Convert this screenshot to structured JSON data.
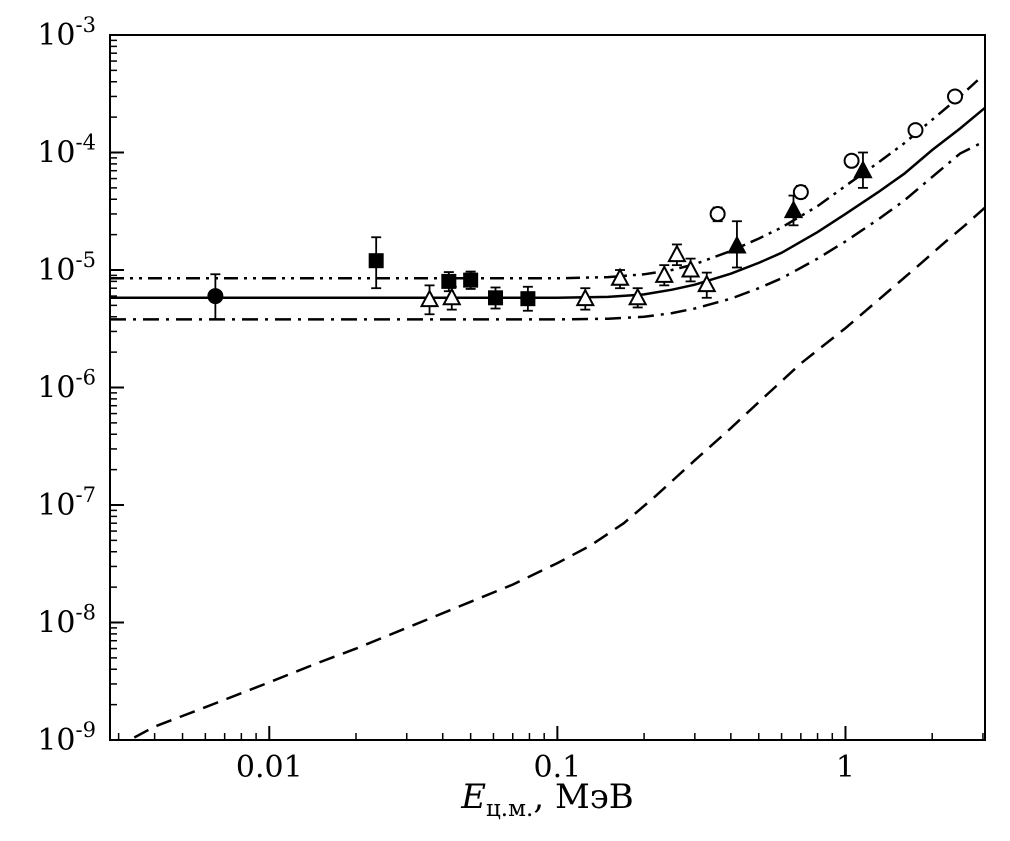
{
  "figure": {
    "background": "#ffffff",
    "ink_color": "#000000"
  },
  "chart_data": {
    "type": "scatter",
    "title": "",
    "xlabel": {
      "main": "E",
      "sub": "ц.м.",
      "rest": ", МэВ"
    },
    "ylabel": "",
    "x_axis": {
      "scale": "log",
      "min": 0.0028,
      "max": 3.05,
      "tick_values": [
        0.01,
        0.1,
        1
      ],
      "tick_labels": [
        "0.01",
        "0.1",
        "1"
      ]
    },
    "y_axis": {
      "scale": "log",
      "min": 1e-09,
      "max": 0.001,
      "tick_exponents": [
        -3,
        -4,
        -5,
        -6,
        -7,
        -8,
        -9
      ],
      "tick_base": "10"
    },
    "grid": false,
    "legend": "none",
    "series": [
      {
        "name": "filled-circle-data",
        "marker": "filled-circle",
        "points": [
          {
            "x": 0.0065,
            "y": 6e-06,
            "lo": 3.8e-06,
            "hi": 9.2e-06
          }
        ]
      },
      {
        "name": "filled-square-data",
        "marker": "filled-square",
        "points": [
          {
            "x": 0.0235,
            "y": 1.2e-05,
            "lo": 7e-06,
            "hi": 1.9e-05
          },
          {
            "x": 0.042,
            "y": 8e-06,
            "lo": 6.6e-06,
            "hi": 9.6e-06
          },
          {
            "x": 0.05,
            "y": 8.2e-06,
            "lo": 6.9e-06,
            "hi": 9.7e-06
          },
          {
            "x": 0.061,
            "y": 5.8e-06,
            "lo": 4.7e-06,
            "hi": 7.1e-06
          },
          {
            "x": 0.079,
            "y": 5.7e-06,
            "lo": 4.5e-06,
            "hi": 7.2e-06
          }
        ]
      },
      {
        "name": "open-triangle-data",
        "marker": "open-triangle",
        "points": [
          {
            "x": 0.036,
            "y": 5.6e-06,
            "lo": 4.2e-06,
            "hi": 7.4e-06
          },
          {
            "x": 0.043,
            "y": 5.8e-06,
            "lo": 4.6e-06,
            "hi": 7.2e-06
          },
          {
            "x": 0.125,
            "y": 5.7e-06,
            "lo": 4.6e-06,
            "hi": 7e-06
          },
          {
            "x": 0.165,
            "y": 8.5e-06,
            "lo": 7e-06,
            "hi": 1e-05
          },
          {
            "x": 0.19,
            "y": 5.8e-06,
            "lo": 4.8e-06,
            "hi": 7e-06
          },
          {
            "x": 0.235,
            "y": 9e-06,
            "lo": 7.4e-06,
            "hi": 1.1e-05
          },
          {
            "x": 0.26,
            "y": 1.35e-05,
            "lo": 1.1e-05,
            "hi": 1.65e-05
          },
          {
            "x": 0.29,
            "y": 1e-05,
            "lo": 8e-06,
            "hi": 1.25e-05
          },
          {
            "x": 0.33,
            "y": 7.5e-06,
            "lo": 5.8e-06,
            "hi": 9.5e-06
          }
        ]
      },
      {
        "name": "filled-triangle-data",
        "marker": "filled-triangle",
        "points": [
          {
            "x": 0.42,
            "y": 1.6e-05,
            "lo": 1.05e-05,
            "hi": 2.6e-05
          },
          {
            "x": 0.66,
            "y": 3.2e-05,
            "lo": 2.4e-05,
            "hi": 4.3e-05
          },
          {
            "x": 1.15,
            "y": 7e-05,
            "lo": 5e-05,
            "hi": 0.0001
          }
        ]
      },
      {
        "name": "open-circle-data",
        "marker": "open-circle",
        "points": [
          {
            "x": 0.36,
            "y": 3e-05,
            "lo": 2.6e-05,
            "hi": 3.4e-05
          },
          {
            "x": 0.7,
            "y": 4.6e-05,
            "lo": 4.1e-05,
            "hi": 5.2e-05
          },
          {
            "x": 1.05,
            "y": 8.5e-05,
            "lo": 7.6e-05,
            "hi": 9.5e-05
          },
          {
            "x": 1.75,
            "y": 0.000155,
            "lo": 0.00014,
            "hi": 0.00017
          },
          {
            "x": 2.4,
            "y": 0.0003,
            "lo": 0.00027,
            "hi": 0.00033
          }
        ]
      }
    ],
    "lines": [
      {
        "name": "upper-band-curve",
        "style": "dash-dot-dot",
        "points": [
          [
            0.0028,
            8.5e-06
          ],
          [
            0.05,
            8.5e-06
          ],
          [
            0.1,
            8.5e-06
          ],
          [
            0.15,
            8.7e-06
          ],
          [
            0.2,
            9.2e-06
          ],
          [
            0.25,
            1e-05
          ],
          [
            0.3,
            1.12e-05
          ],
          [
            0.4,
            1.45e-05
          ],
          [
            0.5,
            1.85e-05
          ],
          [
            0.6,
            2.3e-05
          ],
          [
            0.8,
            3.5e-05
          ],
          [
            1.0,
            5.2e-05
          ],
          [
            1.3,
            8.2e-05
          ],
          [
            1.6,
            0.00012
          ],
          [
            2.0,
            0.00019
          ],
          [
            2.5,
            0.0003
          ],
          [
            2.9,
            0.00042
          ]
        ]
      },
      {
        "name": "central-fit-curve",
        "style": "solid",
        "points": [
          [
            0.0028,
            5.8e-06
          ],
          [
            0.05,
            5.8e-06
          ],
          [
            0.1,
            5.8e-06
          ],
          [
            0.15,
            5.9e-06
          ],
          [
            0.2,
            6.2e-06
          ],
          [
            0.25,
            6.8e-06
          ],
          [
            0.3,
            7.5e-06
          ],
          [
            0.4,
            9.3e-06
          ],
          [
            0.5,
            1.15e-05
          ],
          [
            0.6,
            1.4e-05
          ],
          [
            0.8,
            2.1e-05
          ],
          [
            1.0,
            3e-05
          ],
          [
            1.3,
            4.6e-05
          ],
          [
            1.6,
            6.6e-05
          ],
          [
            2.0,
            0.000105
          ],
          [
            2.5,
            0.00016
          ],
          [
            3.05,
            0.00024
          ]
        ]
      },
      {
        "name": "lower-band-curve",
        "style": "dash-dot",
        "points": [
          [
            0.0028,
            3.8e-06
          ],
          [
            0.05,
            3.8e-06
          ],
          [
            0.1,
            3.8e-06
          ],
          [
            0.15,
            3.85e-06
          ],
          [
            0.2,
            4e-06
          ],
          [
            0.25,
            4.3e-06
          ],
          [
            0.3,
            4.7e-06
          ],
          [
            0.4,
            5.7e-06
          ],
          [
            0.5,
            7e-06
          ],
          [
            0.6,
            8.5e-06
          ],
          [
            0.8,
            1.25e-05
          ],
          [
            1.0,
            1.75e-05
          ],
          [
            1.3,
            2.7e-05
          ],
          [
            1.6,
            3.9e-05
          ],
          [
            2.0,
            6.2e-05
          ],
          [
            2.5,
            9.8e-05
          ],
          [
            3.05,
            0.000125
          ]
        ]
      },
      {
        "name": "dashed-model-curve",
        "style": "dashed",
        "points": [
          [
            0.0034,
            1.05e-09
          ],
          [
            0.004,
            1.3e-09
          ],
          [
            0.006,
            1.9e-09
          ],
          [
            0.01,
            3.1e-09
          ],
          [
            0.015,
            4.6e-09
          ],
          [
            0.02,
            6e-09
          ],
          [
            0.03,
            9e-09
          ],
          [
            0.05,
            1.5e-08
          ],
          [
            0.07,
            2.1e-08
          ],
          [
            0.1,
            3.2e-08
          ],
          [
            0.13,
            4.5e-08
          ],
          [
            0.17,
            7e-08
          ],
          [
            0.22,
            1.2e-07
          ],
          [
            0.3,
            2.4e-07
          ],
          [
            0.4,
            4.5e-07
          ],
          [
            0.5,
            7.5e-07
          ],
          [
            0.7,
            1.6e-06
          ],
          [
            1.0,
            3.2e-06
          ],
          [
            1.4,
            6.5e-06
          ],
          [
            1.8,
            1.1e-05
          ],
          [
            2.2,
            1.7e-05
          ],
          [
            2.6,
            2.4e-05
          ],
          [
            3.05,
            3.4e-05
          ]
        ]
      }
    ]
  }
}
